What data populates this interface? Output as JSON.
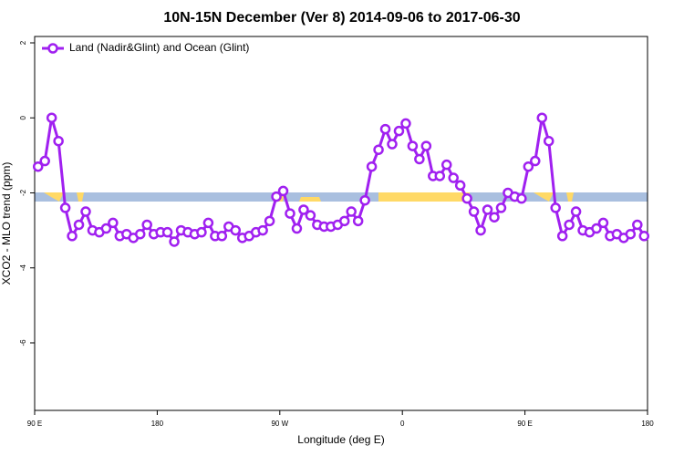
{
  "chart_data": {
    "type": "line",
    "title": "10N-15N December (Ver 8)   2014-09-06 to 2017-06-30",
    "x_label": "Longitude (deg E)",
    "y_label": "XCO2 - MLO trend (ppm)",
    "x": [
      92.5,
      97.5,
      102.5,
      107.5,
      112.5,
      117.5,
      122.5,
      127.5,
      132.5,
      137.5,
      142.5,
      147.5,
      152.5,
      157.5,
      162.5,
      167.5,
      172.5,
      177.5,
      182.5,
      187.5,
      192.5,
      197.5,
      202.5,
      207.5,
      212.5,
      217.5,
      222.5,
      227.5,
      232.5,
      237.5,
      242.5,
      247.5,
      252.5,
      257.5,
      262.5,
      267.5,
      272.5,
      277.5,
      282.5,
      287.5,
      292.5,
      297.5,
      302.5,
      307.5,
      312.5,
      317.5,
      322.5,
      327.5,
      332.5,
      337.5,
      342.5,
      347.5,
      352.5,
      357.5,
      362.5,
      367.5,
      372.5,
      377.5,
      382.5,
      387.5,
      392.5,
      397.5,
      402.5,
      407.5,
      412.5,
      417.5,
      422.5,
      427.5,
      432.5,
      437.5,
      442.5,
      447.5,
      452.5,
      457.5,
      462.5,
      467.5,
      472.5,
      477.5,
      482.5,
      487.5,
      492.5,
      497.5,
      502.5,
      507.5,
      512.5,
      517.5,
      522.5,
      527.5,
      532.5,
      537.5
    ],
    "series": [
      {
        "name": "Land (Nadir&Glint) and Ocean (Glint)",
        "color": "#a020f0",
        "values": [
          -1.3,
          -1.15,
          0.0,
          -0.62,
          -2.4,
          -3.15,
          -2.85,
          -2.5,
          -3.0,
          -3.05,
          -2.95,
          -2.8,
          -3.15,
          -3.1,
          -3.2,
          -3.1,
          -2.85,
          -3.1,
          -3.05,
          -3.05,
          -3.3,
          -3.0,
          -3.05,
          -3.1,
          -3.05,
          -2.8,
          -3.15,
          -3.15,
          -2.9,
          -3.0,
          -3.2,
          -3.15,
          -3.05,
          -3.0,
          -2.75,
          -2.1,
          -1.95,
          -2.55,
          -2.95,
          -2.45,
          -2.6,
          -2.85,
          -2.9,
          -2.9,
          -2.85,
          -2.75,
          -2.5,
          -2.75,
          -2.2,
          -1.3,
          -0.85,
          -0.3,
          -0.7,
          -0.35,
          -0.15,
          -0.75,
          -1.1,
          -0.75,
          -1.55,
          -1.55,
          -1.25,
          -1.6,
          -1.8,
          -2.15,
          -2.5,
          -3.0,
          -2.45,
          -2.65,
          -2.4,
          -2.0,
          -2.1,
          -2.15,
          -1.3,
          -1.15,
          0.0,
          -0.62,
          -2.4,
          -3.15,
          -2.85,
          -2.5,
          -3.0,
          -3.05,
          -2.95,
          -2.8,
          -3.15,
          -3.1,
          -3.2,
          -3.1,
          -2.85,
          -3.15
        ]
      }
    ],
    "xlim": [
      90,
      540
    ],
    "xticks": [
      {
        "value": 90,
        "label": "90 E"
      },
      180,
      {
        "value": 270,
        "label": "90 W"
      },
      {
        "value": 360,
        "label": "0"
      },
      {
        "value": 450,
        "label": "90 E"
      },
      {
        "value": 540,
        "label": "180"
      }
    ],
    "ylim": [
      -7.8,
      2.17
    ],
    "yticks": [
      -6,
      -4,
      -2,
      0,
      2
    ],
    "legend": "top-left"
  }
}
